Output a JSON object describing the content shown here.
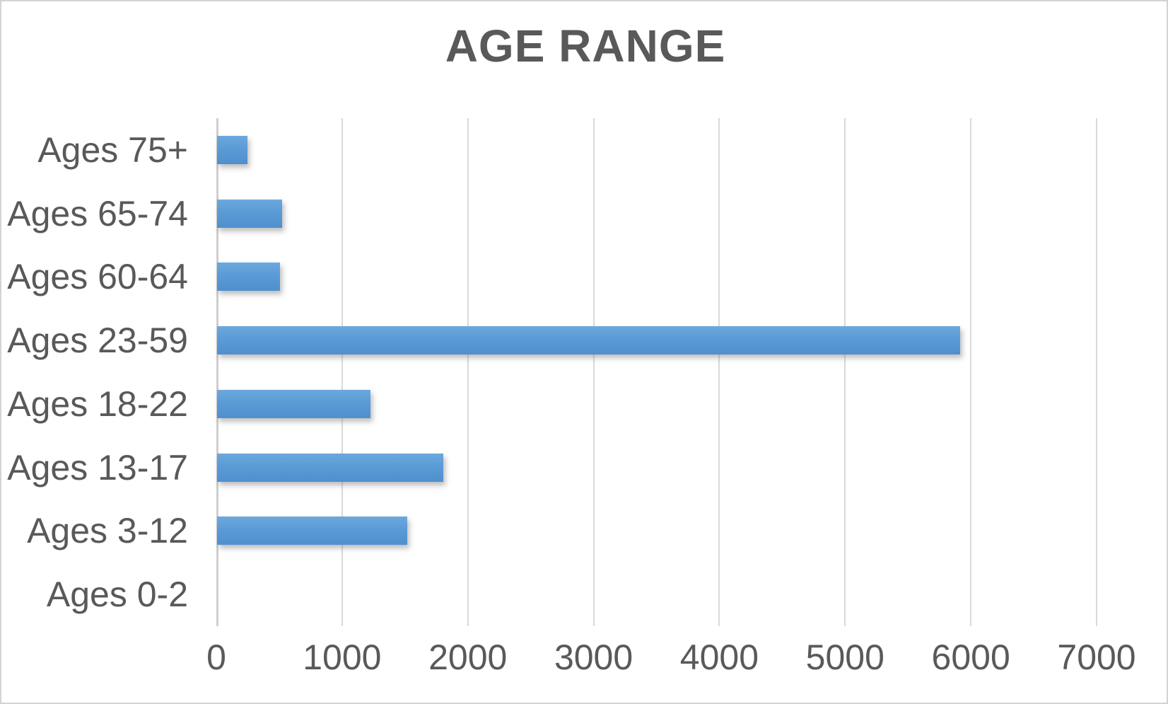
{
  "chart_data": {
    "type": "bar",
    "orientation": "horizontal",
    "title": "AGE RANGE",
    "categories": [
      "Ages 75+",
      "Ages 65-74",
      "Ages 60-64",
      "Ages 23-59",
      "Ages 18-22",
      "Ages 13-17",
      "Ages 3-12",
      "Ages 0-2"
    ],
    "values": [
      240,
      520,
      500,
      5910,
      1220,
      1800,
      1510,
      0
    ],
    "xlabel": "",
    "ylabel": "",
    "xlim": [
      0,
      7000
    ],
    "x_ticks": [
      "0",
      "1000",
      "2000",
      "3000",
      "4000",
      "5000",
      "6000",
      "7000"
    ],
    "grid": true,
    "legend": false,
    "colors": {
      "bar": "#5B9BD5",
      "title_text": "#595959",
      "axis_text": "#595959",
      "gridline": "#D9D9D9",
      "frame_border": "#D3D3D3"
    }
  }
}
